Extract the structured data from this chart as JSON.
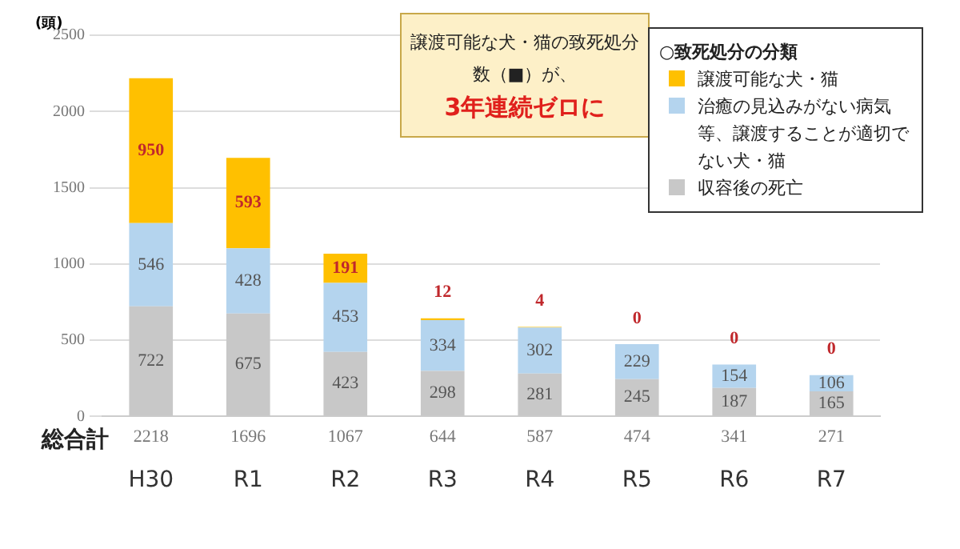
{
  "chart_data": {
    "type": "bar",
    "stacked": true,
    "ylabel": "(頭)",
    "legend_title": "○致死処分の分類",
    "legend": "top right",
    "grid": "y",
    "data_labels": true,
    "categories": [
      "H30",
      "R1",
      "R2",
      "R3",
      "R4",
      "R5",
      "R6",
      "R7"
    ],
    "series": [
      {
        "name": "収容後の死亡",
        "color": "#c8c8c8",
        "values": [
          722,
          675,
          423,
          298,
          281,
          245,
          187,
          165
        ]
      },
      {
        "name": "治癒の見込みがない病気等、譲渡することが適切でない犬・猫",
        "color": "#b4d4ee",
        "values": [
          546,
          428,
          453,
          334,
          302,
          229,
          154,
          106
        ]
      },
      {
        "name": "譲渡可能な犬・猫",
        "color": "#ffc000",
        "values": [
          950,
          593,
          191,
          12,
          4,
          0,
          0,
          0
        ]
      }
    ],
    "totals": [
      "2218",
      "1696",
      "1067",
      "644",
      "587",
      "474",
      "341",
      "271"
    ],
    "ylim": [
      0,
      2500
    ],
    "yticks": [
      0,
      500,
      1000,
      1500,
      2000,
      2500
    ],
    "annotations": [
      "総合計",
      "譲渡可能な犬・猫の致死処分数（■）が、",
      "3年連続ゼロに"
    ]
  }
}
